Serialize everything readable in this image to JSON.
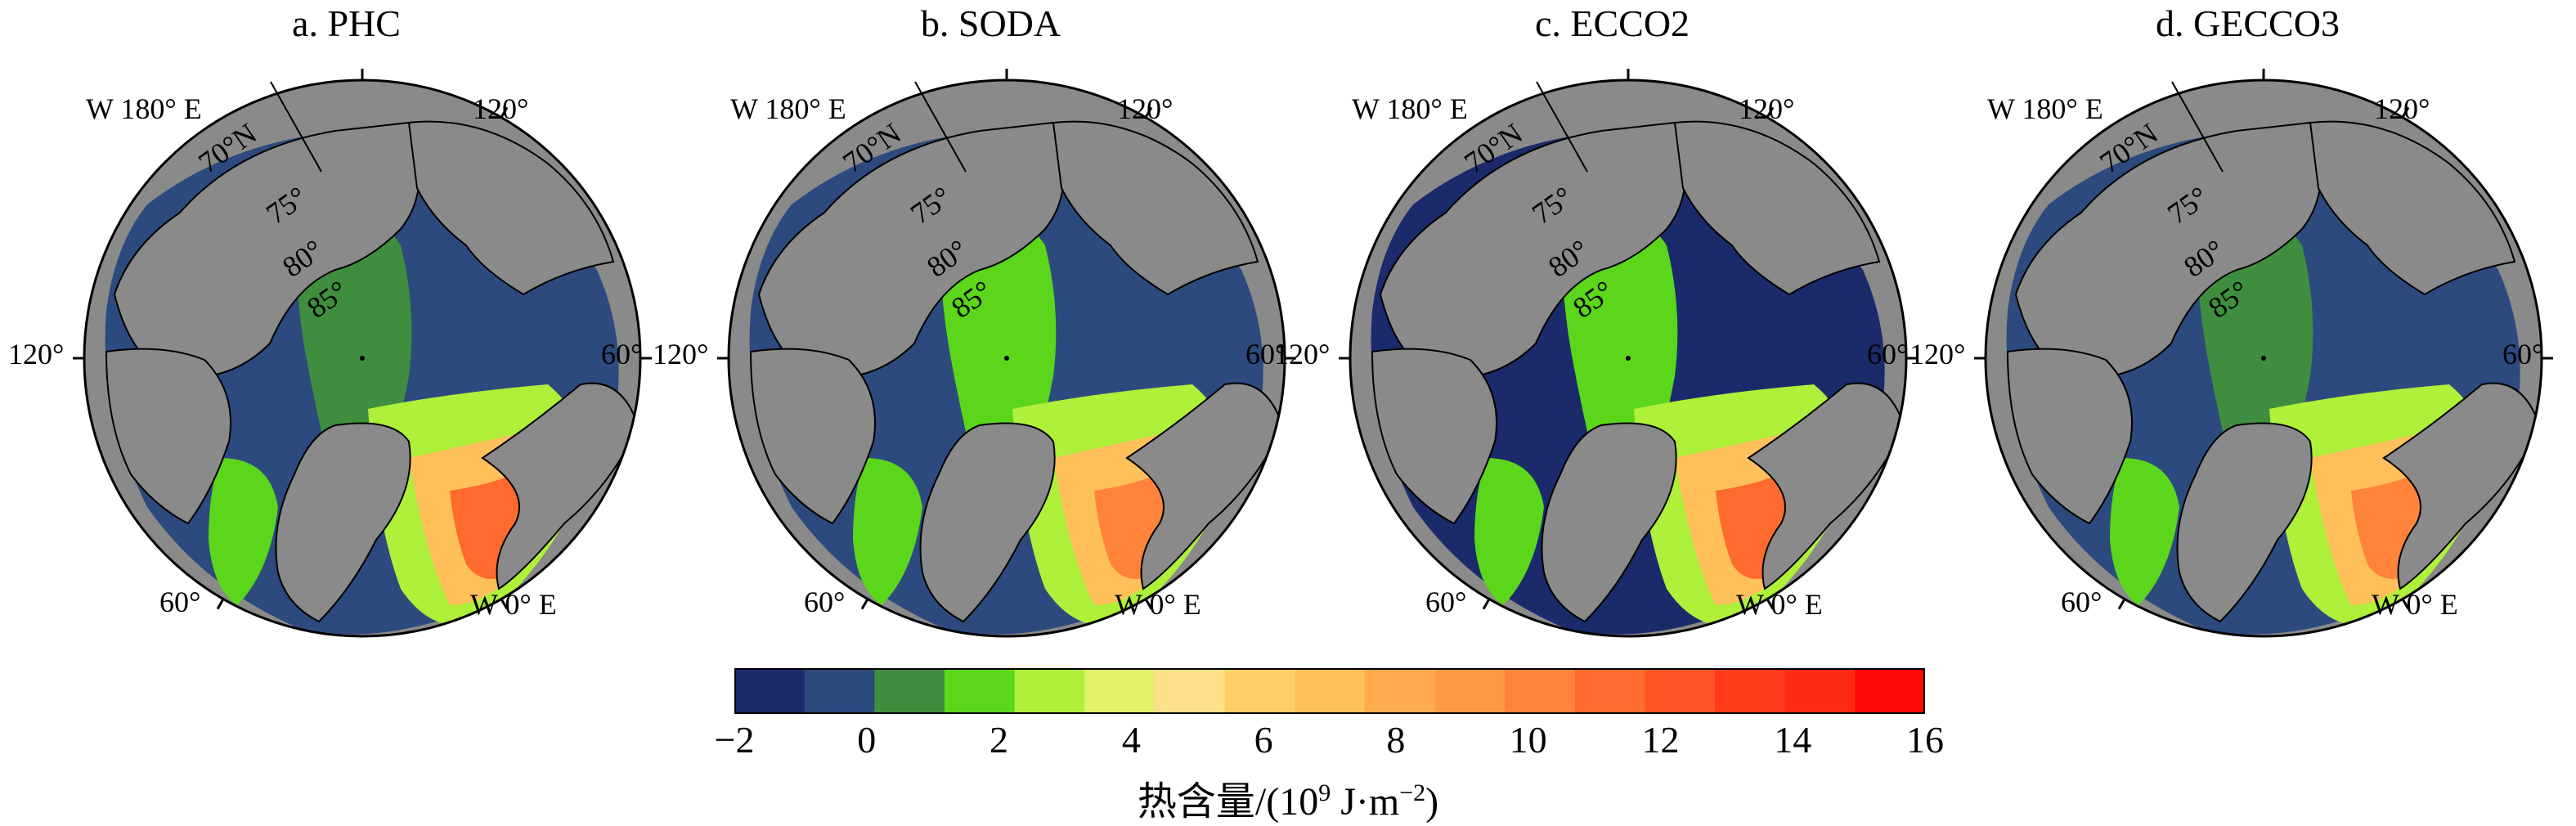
{
  "panels": [
    {
      "title": "a. PHC"
    },
    {
      "title": "b. SODA"
    },
    {
      "title": "c. ECCO2"
    },
    {
      "title": "d. GECCO3"
    }
  ],
  "map_labels": {
    "dateline": "W 180° E",
    "prime_meridian": "W 0° E",
    "lon_120": "120°",
    "lon_60": "60°",
    "lat_70": "70°N",
    "lat_75": "75°",
    "lat_80": "80°",
    "lat_85": "85°"
  },
  "colorbar": {
    "colors": [
      "#1a2a6b",
      "#2d4a7e",
      "#3f8e3f",
      "#5bd61a",
      "#aef03a",
      "#e2f06a",
      "#ffe08a",
      "#ffd066",
      "#ffc05a",
      "#ffac4e",
      "#ff9a44",
      "#ff843a",
      "#ff6a2e",
      "#ff5424",
      "#ff3a1a",
      "#ff2a12",
      "#ff0a08"
    ],
    "min": -2,
    "max": 16,
    "ticks": [
      "−2",
      "0",
      "2",
      "4",
      "6",
      "8",
      "10",
      "12",
      "14",
      "16"
    ],
    "title_main": "热含量/(10",
    "title_sup": "9",
    "title_unit": " J·m",
    "title_unit_sup": "−2",
    "title_close": ")"
  }
}
